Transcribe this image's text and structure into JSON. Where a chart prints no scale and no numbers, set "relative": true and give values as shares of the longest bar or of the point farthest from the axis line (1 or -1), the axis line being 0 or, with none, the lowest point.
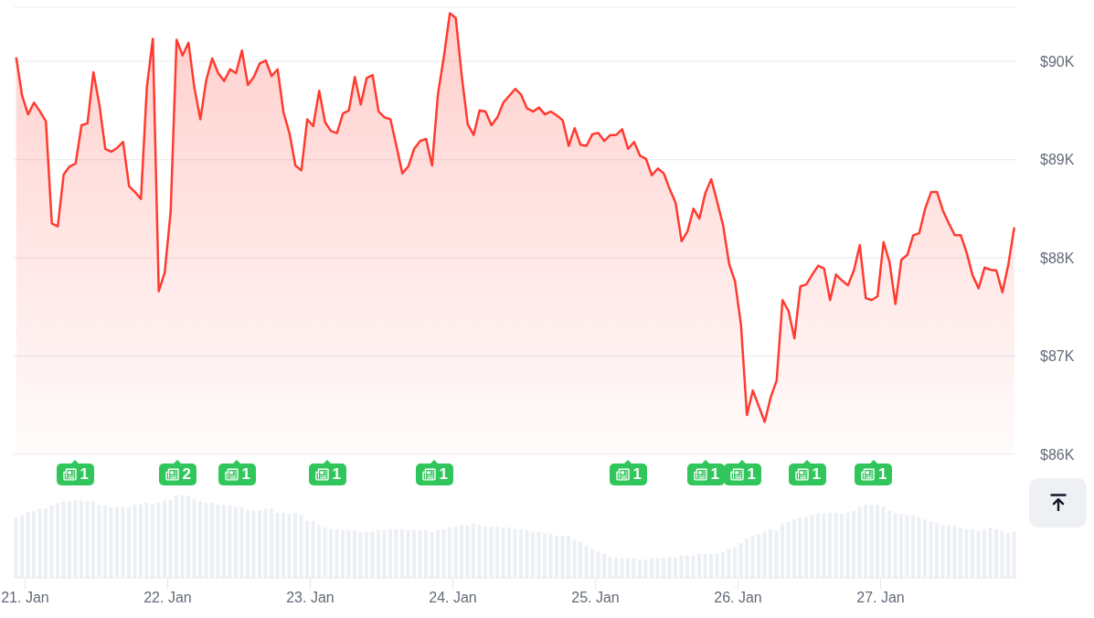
{
  "chart_data": [
    {
      "type": "area",
      "color": "#ff3b30",
      "grid": "y",
      "tick_labels": "y",
      "x": [
        "--01-20T22:30",
        "--01-20T23:30",
        "--01-21T00:30",
        "--01-21T01:30",
        "--01-21T02:30",
        "--01-21T03:30",
        "--01-21T04:30",
        "--01-21T05:30",
        "--01-21T06:30",
        "--01-21T07:30",
        "--01-21T08:30",
        "--01-21T09:30",
        "--01-21T10:30",
        "--01-21T11:30",
        "--01-21T12:30",
        "--01-21T13:30",
        "--01-21T14:30",
        "--01-21T15:30",
        "--01-21T16:30",
        "--01-21T17:30",
        "--01-21T18:30",
        "--01-21T19:30",
        "--01-21T20:30",
        "--01-21T21:30",
        "--01-21T22:30",
        "--01-21T23:30",
        "--01-22T00:30",
        "--01-22T01:30",
        "--01-22T02:30",
        "--01-22T03:30",
        "--01-22T04:30",
        "--01-22T05:30",
        "--01-22T06:30",
        "--01-22T07:30",
        "--01-22T08:30",
        "--01-22T09:30",
        "--01-22T10:30",
        "--01-22T11:30",
        "--01-22T12:30",
        "--01-22T13:30",
        "--01-22T14:30",
        "--01-22T15:30",
        "--01-22T16:30",
        "--01-22T17:30",
        "--01-22T18:30",
        "--01-22T19:30",
        "--01-22T20:30",
        "--01-22T21:30",
        "--01-22T22:30",
        "--01-22T23:30",
        "--01-23T00:30",
        "--01-23T01:30",
        "--01-23T02:30",
        "--01-23T03:30",
        "--01-23T04:30",
        "--01-23T05:30",
        "--01-23T06:30",
        "--01-23T07:30",
        "--01-23T08:30",
        "--01-23T09:30",
        "--01-23T10:30",
        "--01-23T11:30",
        "--01-23T12:30",
        "--01-23T13:30",
        "--01-23T14:30",
        "--01-23T15:30",
        "--01-23T16:30",
        "--01-23T17:30",
        "--01-23T18:30",
        "--01-23T19:30",
        "--01-23T20:30",
        "--01-23T21:30",
        "--01-23T22:30",
        "--01-23T23:30",
        "--01-24T00:30",
        "--01-24T01:30",
        "--01-24T02:30",
        "--01-24T03:30",
        "--01-24T04:30",
        "--01-24T05:30",
        "--01-24T06:30",
        "--01-24T07:30",
        "--01-24T08:30",
        "--01-24T09:30",
        "--01-24T10:30",
        "--01-24T11:30",
        "--01-24T12:30",
        "--01-24T13:30",
        "--01-24T14:30",
        "--01-24T15:30",
        "--01-24T16:30",
        "--01-24T17:30",
        "--01-24T18:30",
        "--01-24T19:30",
        "--01-24T20:30",
        "--01-24T21:30",
        "--01-24T22:30",
        "--01-24T23:30",
        "--01-25T00:30",
        "--01-25T01:30",
        "--01-25T02:30",
        "--01-25T03:30",
        "--01-25T04:30",
        "--01-25T05:30",
        "--01-25T06:30",
        "--01-25T07:30",
        "--01-25T08:30",
        "--01-25T09:30",
        "--01-25T10:30",
        "--01-25T11:30",
        "--01-25T12:30",
        "--01-25T13:30",
        "--01-25T14:30",
        "--01-25T15:30",
        "--01-25T16:30",
        "--01-25T17:30",
        "--01-25T18:30",
        "--01-25T19:30",
        "--01-25T20:30",
        "--01-25T21:30",
        "--01-25T22:30",
        "--01-25T23:30",
        "--01-26T00:30",
        "--01-26T01:30",
        "--01-26T02:30",
        "--01-26T03:30",
        "--01-26T04:30",
        "--01-26T05:30",
        "--01-26T06:30",
        "--01-26T07:30",
        "--01-26T08:30",
        "--01-26T09:30",
        "--01-26T10:30",
        "--01-26T11:30",
        "--01-26T12:30",
        "--01-26T13:30",
        "--01-26T14:30",
        "--01-26T15:30",
        "--01-26T16:30",
        "--01-26T17:30",
        "--01-26T18:30",
        "--01-26T19:30",
        "--01-26T20:30",
        "--01-26T21:30",
        "--01-26T22:30",
        "--01-26T23:30",
        "--01-27T00:30",
        "--01-27T01:30",
        "--01-27T02:30",
        "--01-27T03:30",
        "--01-27T04:30",
        "--01-27T05:30",
        "--01-27T06:30",
        "--01-27T07:30",
        "--01-27T08:30",
        "--01-27T09:30",
        "--01-27T10:30",
        "--01-27T11:30",
        "--01-27T12:30",
        "--01-27T13:30",
        "--01-27T14:30",
        "--01-27T15:30",
        "--01-27T16:30",
        "--01-27T17:30",
        "--01-27T18:30",
        "--01-27T19:30",
        "--01-27T20:30",
        "--01-27T21:30",
        "--01-27T22:30"
      ],
      "values": [
        90040,
        89650,
        89460,
        89580,
        89490,
        89390,
        88350,
        88320,
        88850,
        88930,
        88960,
        89350,
        89370,
        89890,
        89560,
        89110,
        89080,
        89120,
        89180,
        88730,
        88670,
        88600,
        89740,
        90230,
        87660,
        87850,
        88470,
        90220,
        90060,
        90190,
        89730,
        89410,
        89810,
        90030,
        89880,
        89800,
        89920,
        89880,
        90110,
        89760,
        89840,
        89980,
        90010,
        89850,
        89920,
        89480,
        89270,
        88940,
        88890,
        89410,
        89340,
        89700,
        89380,
        89290,
        89270,
        89470,
        89500,
        89840,
        89560,
        89830,
        89860,
        89490,
        89430,
        89410,
        89140,
        88860,
        88930,
        89110,
        89190,
        89210,
        88940,
        89670,
        90050,
        90490,
        90440,
        89850,
        89360,
        89250,
        89500,
        89490,
        89350,
        89430,
        89580,
        89650,
        89720,
        89660,
        89520,
        89490,
        89530,
        89460,
        89490,
        89450,
        89400,
        89140,
        89320,
        89150,
        89140,
        89260,
        89270,
        89190,
        89250,
        89250,
        89310,
        89110,
        89180,
        89040,
        89010,
        88840,
        88910,
        88860,
        88700,
        88560,
        88170,
        88270,
        88500,
        88400,
        88660,
        88800,
        88570,
        88330,
        87940,
        87760,
        87320,
        86400,
        86650,
        86490,
        86330,
        86580,
        86750,
        87570,
        87460,
        87180,
        87710,
        87730,
        87830,
        87920,
        87890,
        87570,
        87830,
        87770,
        87720,
        87870,
        88130,
        87590,
        87570,
        87610,
        88160,
        87960,
        87530,
        87980,
        88030,
        88230,
        88250,
        88500,
        88670,
        88670,
        88480,
        88350,
        88230,
        88230,
        88050,
        87820,
        87690,
        87900,
        87880,
        87870,
        87650,
        87930,
        88310
      ],
      "xlim": [
        "--01-20T22:05",
        "--01-27T23:00"
      ],
      "ylim": [
        86000,
        90550
      ],
      "yticks": [
        {
          "value": 86000,
          "label": "$86K"
        },
        {
          "value": 87000,
          "label": "$87K"
        },
        {
          "value": 88000,
          "label": "$88K"
        },
        {
          "value": 89000,
          "label": "$89K"
        },
        {
          "value": 90000,
          "label": "$90K"
        }
      ],
      "annotations": [
        "1",
        "2",
        "1",
        "1",
        "1",
        "1",
        "1",
        "1",
        "1",
        "1"
      ]
    },
    {
      "type": "bar",
      "color": "#eceff3",
      "relative": true,
      "tick_labels": "x",
      "x": [
        "--01-20T22:30",
        "--01-20T23:30",
        "--01-21T00:30",
        "--01-21T01:30",
        "--01-21T02:30",
        "--01-21T03:30",
        "--01-21T04:30",
        "--01-21T05:30",
        "--01-21T06:30",
        "--01-21T07:30",
        "--01-21T08:30",
        "--01-21T09:30",
        "--01-21T10:30",
        "--01-21T11:30",
        "--01-21T12:30",
        "--01-21T13:30",
        "--01-21T14:30",
        "--01-21T15:30",
        "--01-21T16:30",
        "--01-21T17:30",
        "--01-21T18:30",
        "--01-21T19:30",
        "--01-21T20:30",
        "--01-21T21:30",
        "--01-21T22:30",
        "--01-21T23:30",
        "--01-22T00:30",
        "--01-22T01:30",
        "--01-22T02:30",
        "--01-22T03:30",
        "--01-22T04:30",
        "--01-22T05:30",
        "--01-22T06:30",
        "--01-22T07:30",
        "--01-22T08:30",
        "--01-22T09:30",
        "--01-22T10:30",
        "--01-22T11:30",
        "--01-22T12:30",
        "--01-22T13:30",
        "--01-22T14:30",
        "--01-22T15:30",
        "--01-22T16:30",
        "--01-22T17:30",
        "--01-22T18:30",
        "--01-22T19:30",
        "--01-22T20:30",
        "--01-22T21:30",
        "--01-22T22:30",
        "--01-22T23:30",
        "--01-23T00:30",
        "--01-23T01:30",
        "--01-23T02:30",
        "--01-23T03:30",
        "--01-23T04:30",
        "--01-23T05:30",
        "--01-23T06:30",
        "--01-23T07:30",
        "--01-23T08:30",
        "--01-23T09:30",
        "--01-23T10:30",
        "--01-23T11:30",
        "--01-23T12:30",
        "--01-23T13:30",
        "--01-23T14:30",
        "--01-23T15:30",
        "--01-23T16:30",
        "--01-23T17:30",
        "--01-23T18:30",
        "--01-23T19:30",
        "--01-23T20:30",
        "--01-23T21:30",
        "--01-23T22:30",
        "--01-23T23:30",
        "--01-24T00:30",
        "--01-24T01:30",
        "--01-24T02:30",
        "--01-24T03:30",
        "--01-24T04:30",
        "--01-24T05:30",
        "--01-24T06:30",
        "--01-24T07:30",
        "--01-24T08:30",
        "--01-24T09:30",
        "--01-24T10:30",
        "--01-24T11:30",
        "--01-24T12:30",
        "--01-24T13:30",
        "--01-24T14:30",
        "--01-24T15:30",
        "--01-24T16:30",
        "--01-24T17:30",
        "--01-24T18:30",
        "--01-24T19:30",
        "--01-24T20:30",
        "--01-24T21:30",
        "--01-24T22:30",
        "--01-24T23:30",
        "--01-25T00:30",
        "--01-25T01:30",
        "--01-25T02:30",
        "--01-25T03:30",
        "--01-25T04:30",
        "--01-25T05:30",
        "--01-25T06:30",
        "--01-25T07:30",
        "--01-25T08:30",
        "--01-25T09:30",
        "--01-25T10:30",
        "--01-25T11:30",
        "--01-25T12:30",
        "--01-25T13:30",
        "--01-25T14:30",
        "--01-25T15:30",
        "--01-25T16:30",
        "--01-25T17:30",
        "--01-25T18:30",
        "--01-25T19:30",
        "--01-25T20:30",
        "--01-25T21:30",
        "--01-25T22:30",
        "--01-25T23:30",
        "--01-26T00:30",
        "--01-26T01:30",
        "--01-26T02:30",
        "--01-26T03:30",
        "--01-26T04:30",
        "--01-26T05:30",
        "--01-26T06:30",
        "--01-26T07:30",
        "--01-26T08:30",
        "--01-26T09:30",
        "--01-26T10:30",
        "--01-26T11:30",
        "--01-26T12:30",
        "--01-26T13:30",
        "--01-26T14:30",
        "--01-26T15:30",
        "--01-26T16:30",
        "--01-26T17:30",
        "--01-26T18:30",
        "--01-26T19:30",
        "--01-26T20:30",
        "--01-26T21:30",
        "--01-26T22:30",
        "--01-26T23:30",
        "--01-27T00:30",
        "--01-27T01:30",
        "--01-27T02:30",
        "--01-27T03:30",
        "--01-27T04:30",
        "--01-27T05:30",
        "--01-27T06:30",
        "--01-27T07:30",
        "--01-27T08:30",
        "--01-27T09:30",
        "--01-27T10:30",
        "--01-27T11:30",
        "--01-27T12:30",
        "--01-27T13:30",
        "--01-27T14:30",
        "--01-27T15:30",
        "--01-27T16:30",
        "--01-27T17:30",
        "--01-27T18:30",
        "--01-27T19:30",
        "--01-27T20:30",
        "--01-27T21:30",
        "--01-27T22:30"
      ],
      "values": [
        0.73,
        0.76,
        0.8,
        0.81,
        0.84,
        0.84,
        0.88,
        0.91,
        0.93,
        0.93,
        0.94,
        0.94,
        0.93,
        0.93,
        0.88,
        0.88,
        0.86,
        0.86,
        0.86,
        0.86,
        0.89,
        0.89,
        0.91,
        0.89,
        0.91,
        0.94,
        0.94,
        1,
        1,
        1,
        0.96,
        0.93,
        0.91,
        0.91,
        0.89,
        0.88,
        0.88,
        0.86,
        0.86,
        0.82,
        0.82,
        0.82,
        0.84,
        0.84,
        0.79,
        0.79,
        0.78,
        0.79,
        0.76,
        0.69,
        0.69,
        0.64,
        0.61,
        0.59,
        0.59,
        0.58,
        0.58,
        0.58,
        0.56,
        0.56,
        0.56,
        0.58,
        0.58,
        0.59,
        0.59,
        0.59,
        0.58,
        0.58,
        0.58,
        0.58,
        0.56,
        0.58,
        0.59,
        0.61,
        0.62,
        0.64,
        0.64,
        0.66,
        0.64,
        0.62,
        0.62,
        0.62,
        0.61,
        0.61,
        0.59,
        0.59,
        0.58,
        0.56,
        0.56,
        0.54,
        0.53,
        0.51,
        0.51,
        0.51,
        0.46,
        0.44,
        0.39,
        0.35,
        0.32,
        0.29,
        0.25,
        0.24,
        0.24,
        0.24,
        0.24,
        0.22,
        0.22,
        0.24,
        0.24,
        0.24,
        0.25,
        0.25,
        0.27,
        0.27,
        0.27,
        0.29,
        0.29,
        0.29,
        0.29,
        0.31,
        0.35,
        0.37,
        0.42,
        0.48,
        0.51,
        0.53,
        0.56,
        0.59,
        0.57,
        0.66,
        0.68,
        0.71,
        0.73,
        0.74,
        0.76,
        0.78,
        0.78,
        0.79,
        0.79,
        0.78,
        0.79,
        0.81,
        0.86,
        0.89,
        0.88,
        0.89,
        0.86,
        0.81,
        0.79,
        0.78,
        0.76,
        0.76,
        0.74,
        0.71,
        0.69,
        0.67,
        0.64,
        0.64,
        0.63,
        0.61,
        0.59,
        0.59,
        0.57,
        0.59,
        0.61,
        0.59,
        0.57,
        0.54,
        0.56
      ],
      "xlim": [
        "--01-20T22:05",
        "--01-27T23:00"
      ],
      "xticks": [
        {
          "value": "--01-21",
          "label": "21. Jan"
        },
        {
          "value": "--01-22",
          "label": "22. Jan"
        },
        {
          "value": "--01-23",
          "label": "23. Jan"
        },
        {
          "value": "--01-24",
          "label": "24. Jan"
        },
        {
          "value": "--01-25",
          "label": "25. Jan"
        },
        {
          "value": "--01-26",
          "label": "26. Jan"
        },
        {
          "value": "--01-27",
          "label": "27. Jan"
        }
      ]
    }
  ]
}
